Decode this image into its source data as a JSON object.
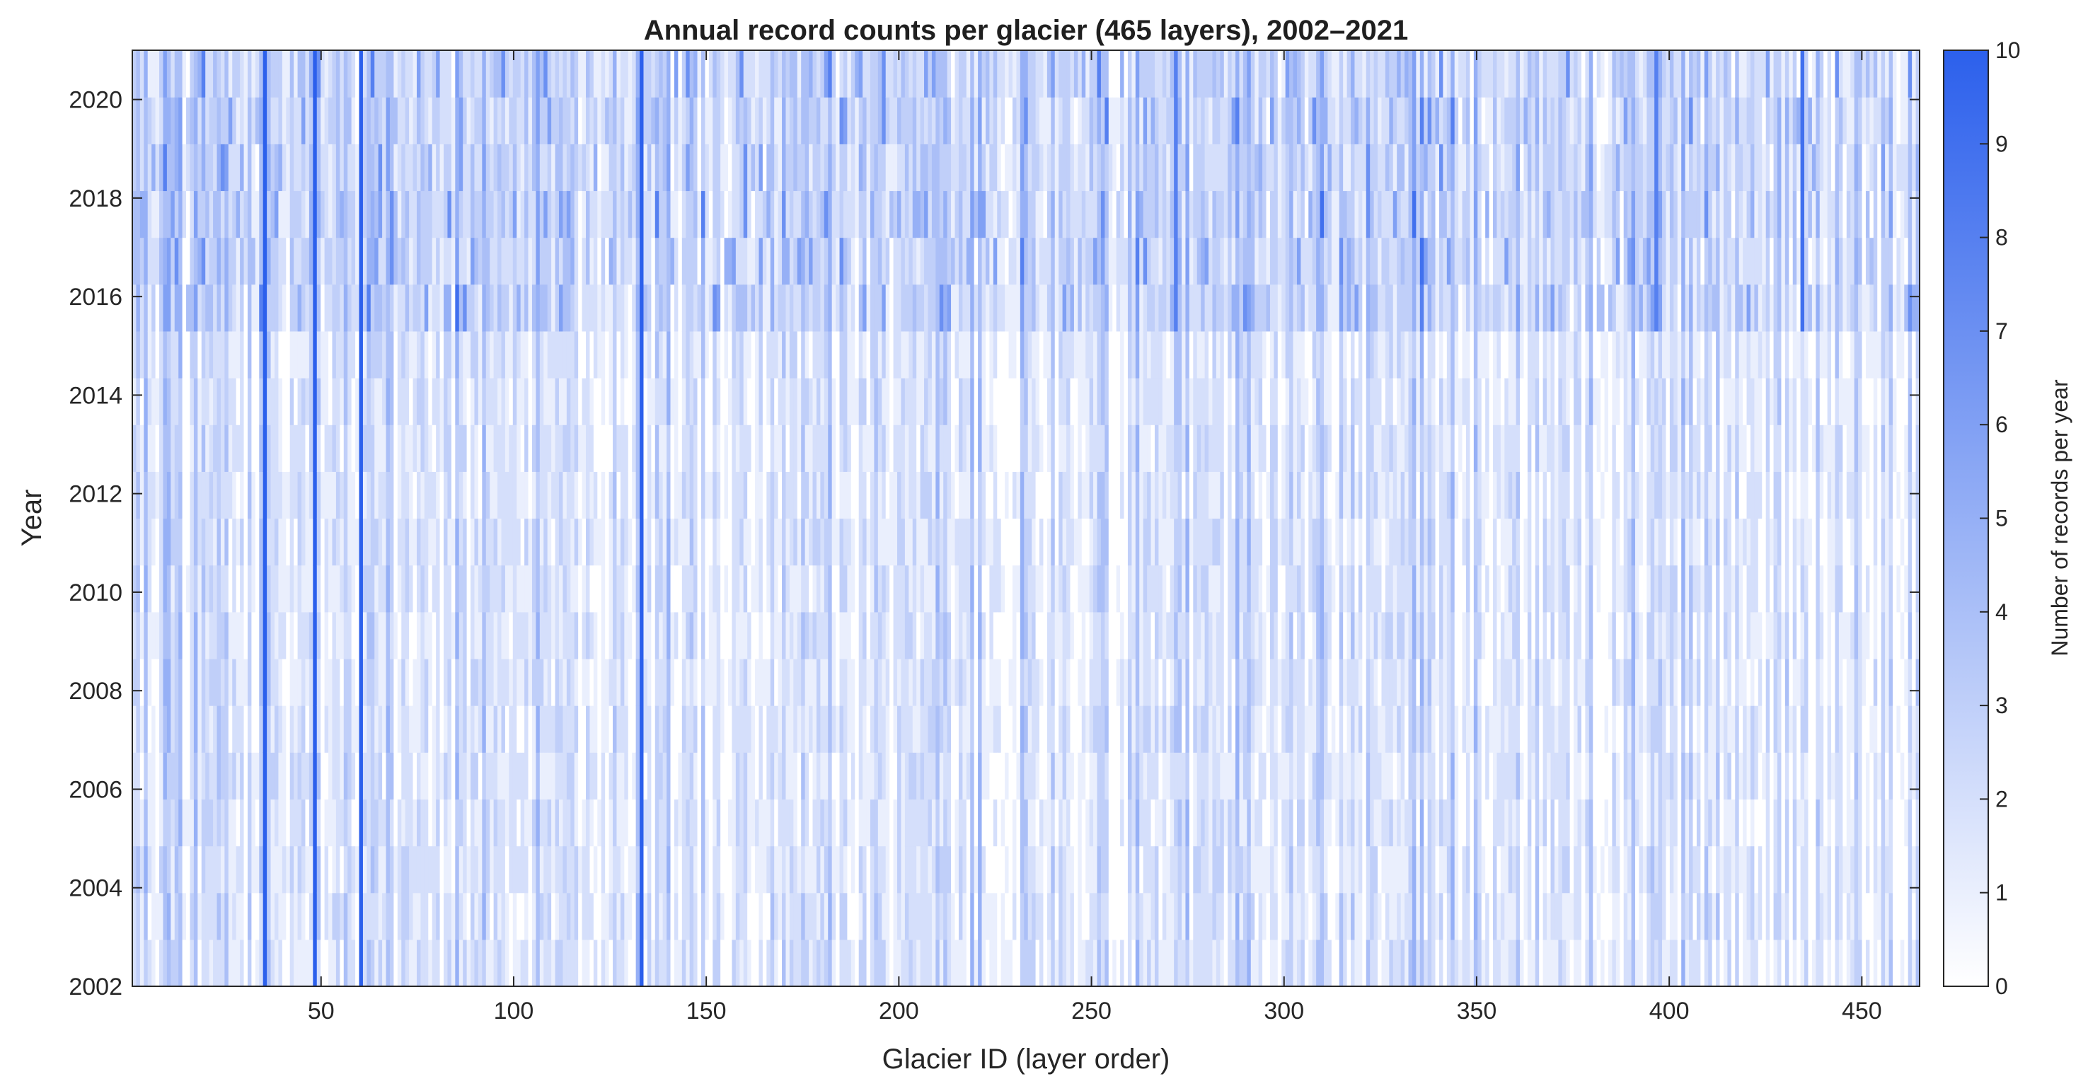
{
  "chart_data": {
    "type": "heatmap",
    "title": "Annual record counts per glacier (465 layers), 2002–2021",
    "xlabel": "Glacier ID (layer order)",
    "ylabel": "Year",
    "xlim": [
      1,
      465
    ],
    "ylim": [
      2002,
      2021
    ],
    "x_ticks": [
      50,
      100,
      150,
      200,
      250,
      300,
      350,
      400,
      450
    ],
    "y_ticks": [
      2002,
      2004,
      2006,
      2008,
      2010,
      2012,
      2014,
      2016,
      2018,
      2020
    ],
    "n_glaciers": 465,
    "years": [
      2002,
      2003,
      2004,
      2005,
      2006,
      2007,
      2008,
      2009,
      2010,
      2011,
      2012,
      2013,
      2014,
      2015,
      2016,
      2017,
      2018,
      2019,
      2020,
      2021
    ],
    "colorbar": {
      "label": "Number of records per year",
      "min": 0,
      "max": 10,
      "ticks": [
        0,
        1,
        2,
        3,
        4,
        5,
        6,
        7,
        8,
        9,
        10
      ],
      "color_low": "#ffffff",
      "color_high": "#2c60ec"
    },
    "period_typical_counts": [
      {
        "years": "2002–2015",
        "typical_count": 2
      },
      {
        "years": "2016–2021",
        "typical_count": 3
      }
    ],
    "high_count_glaciers": [
      {
        "glacier": 35,
        "all_years": 10
      },
      {
        "glacier": 48,
        "all_years": 10
      },
      {
        "glacier": 60,
        "all_years": 10
      },
      {
        "glacier": 133,
        "all_years": 10
      },
      {
        "glacier": 435,
        "years_2016_2021": 9
      },
      {
        "glacier": 397,
        "years_2016_2021": 8
      },
      {
        "glacier": 272,
        "years_2016_2021": 8
      }
    ],
    "grid": false,
    "legend": "colorbar-right"
  }
}
